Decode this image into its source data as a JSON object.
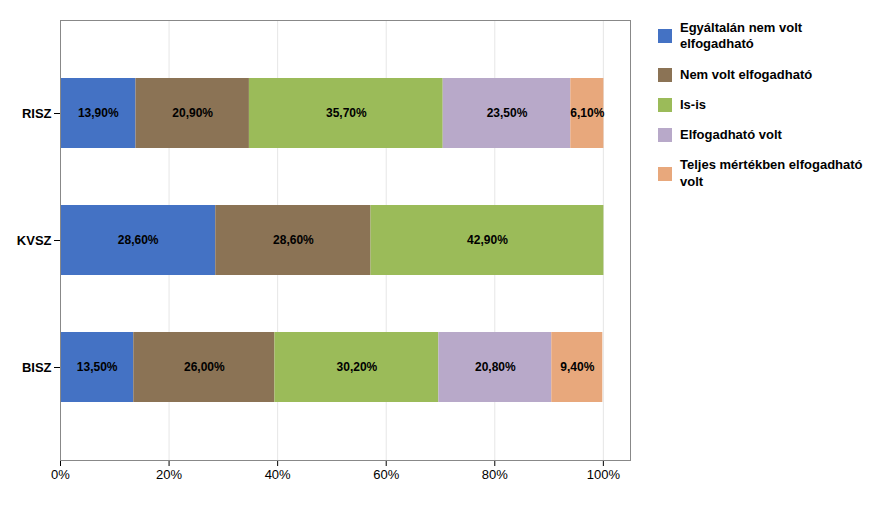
{
  "chart_data": {
    "type": "bar",
    "orientation": "horizontal",
    "stacked": true,
    "categories": [
      "BISZ",
      "KVSZ",
      "RISZ"
    ],
    "series": [
      {
        "name": "Egyáltalán nem volt\nelfogadható",
        "color": "#4472C4",
        "values": [
          13.5,
          28.6,
          13.9
        ],
        "value_labels": [
          "13,50%",
          "28,60%",
          "13,90%"
        ]
      },
      {
        "name": "Nem volt elfogadható",
        "color": "#8B7355",
        "values": [
          26.0,
          28.6,
          20.9
        ],
        "value_labels": [
          "26,00%",
          "28,60%",
          "20,90%"
        ]
      },
      {
        "name": "Is-is",
        "color": "#9BBB59",
        "values": [
          30.2,
          42.9,
          35.7
        ],
        "value_labels": [
          "30,20%",
          "42,90%",
          "35,70%"
        ]
      },
      {
        "name": "Elfogadható volt",
        "color": "#B8A9C9",
        "values": [
          20.8,
          0.0,
          23.5
        ],
        "value_labels": [
          "20,80%",
          null,
          "23,50%"
        ]
      },
      {
        "name": "Teljes mértékben elfogadható\nvolt",
        "color": "#E8A87C",
        "values": [
          9.4,
          0.0,
          6.1
        ],
        "value_labels": [
          "9,40%",
          null,
          "6,10%"
        ]
      }
    ],
    "xlim": [
      0,
      105
    ],
    "xticks": [
      {
        "value": 0,
        "label": "0%"
      },
      {
        "value": 20,
        "label": "20%"
      },
      {
        "value": 40,
        "label": "40%"
      },
      {
        "value": 60,
        "label": "60%"
      },
      {
        "value": 80,
        "label": "80%"
      },
      {
        "value": 100,
        "label": "100%"
      }
    ],
    "grid": true,
    "legend": "right",
    "data_labels": true
  }
}
